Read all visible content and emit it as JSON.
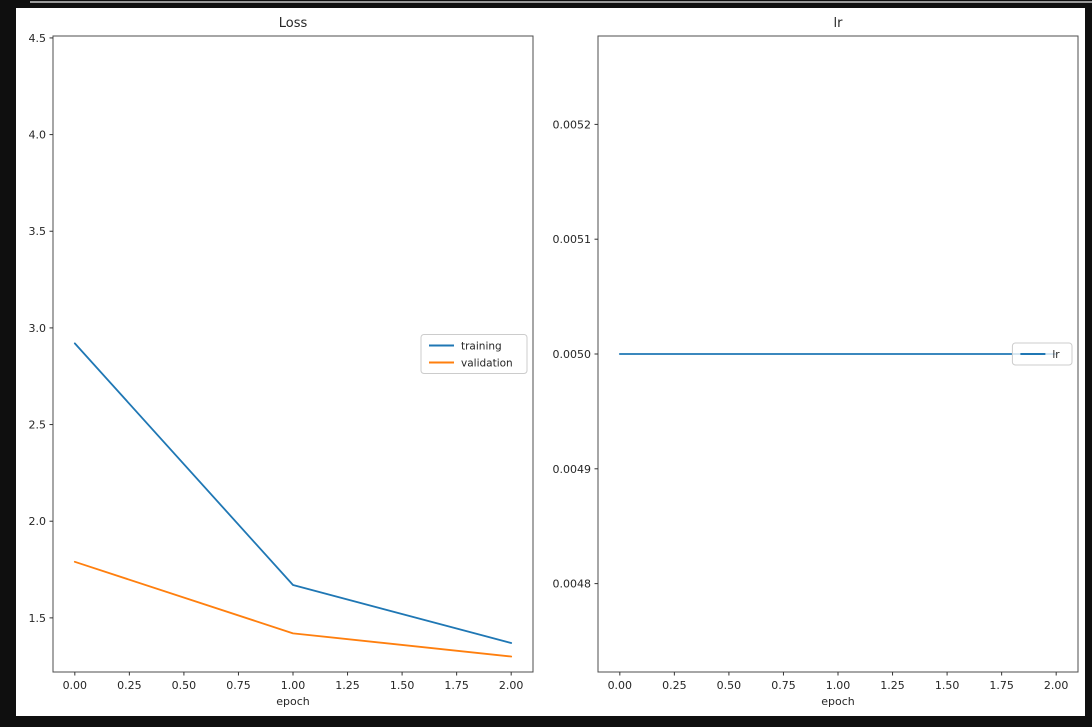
{
  "page": {
    "bg_color": "#0f0f0f",
    "top_border_color": "#9a9a9a",
    "figure_bg": "#ffffff",
    "text_color": "#262626",
    "spine_color": "#4d4d4d",
    "tick_color": "#333333",
    "legend_border_color": "#cccccc"
  },
  "chart_data": [
    {
      "type": "line",
      "title": "Loss",
      "xlabel": "epoch",
      "ylabel": "",
      "x": [
        0,
        1,
        2
      ],
      "series": [
        {
          "name": "training",
          "color": "#1f77b4",
          "values": [
            2.92,
            1.67,
            1.37
          ]
        },
        {
          "name": "validation",
          "color": "#ff7f0e",
          "values": [
            1.79,
            1.42,
            1.3
          ]
        }
      ],
      "xlim": [
        -0.1,
        2.1
      ],
      "ylim": [
        1.22,
        4.51
      ],
      "xticks": [
        0.0,
        0.25,
        0.5,
        0.75,
        1.0,
        1.25,
        1.5,
        1.75,
        2.0
      ],
      "xtick_labels": [
        "0.00",
        "0.25",
        "0.50",
        "0.75",
        "1.00",
        "1.25",
        "1.50",
        "1.75",
        "2.00"
      ],
      "yticks": [
        1.5,
        2.0,
        2.5,
        3.0,
        3.5,
        4.0,
        4.5
      ],
      "ytick_labels": [
        "1.5",
        "2.0",
        "2.5",
        "3.0",
        "3.5",
        "4.0",
        "4.5"
      ],
      "grid": false,
      "legend": {
        "position": "center-right",
        "labels": [
          "training",
          "validation"
        ]
      }
    },
    {
      "type": "line",
      "title": "lr",
      "xlabel": "epoch",
      "ylabel": "",
      "x": [
        0,
        1,
        2
      ],
      "series": [
        {
          "name": "lr",
          "color": "#1f77b4",
          "values": [
            0.005,
            0.005,
            0.005
          ]
        }
      ],
      "xlim": [
        -0.1,
        2.1
      ],
      "ylim": [
        0.004723,
        0.005277
      ],
      "xticks": [
        0.0,
        0.25,
        0.5,
        0.75,
        1.0,
        1.25,
        1.5,
        1.75,
        2.0
      ],
      "xtick_labels": [
        "0.00",
        "0.25",
        "0.50",
        "0.75",
        "1.00",
        "1.25",
        "1.50",
        "1.75",
        "2.00"
      ],
      "yticks": [
        0.0048,
        0.0049,
        0.005,
        0.0051,
        0.0052
      ],
      "ytick_labels": [
        "0.0048",
        "0.0049",
        "0.0050",
        "0.0051",
        "0.0052"
      ],
      "grid": false,
      "legend": {
        "position": "center-right",
        "labels": [
          "lr"
        ]
      }
    }
  ]
}
